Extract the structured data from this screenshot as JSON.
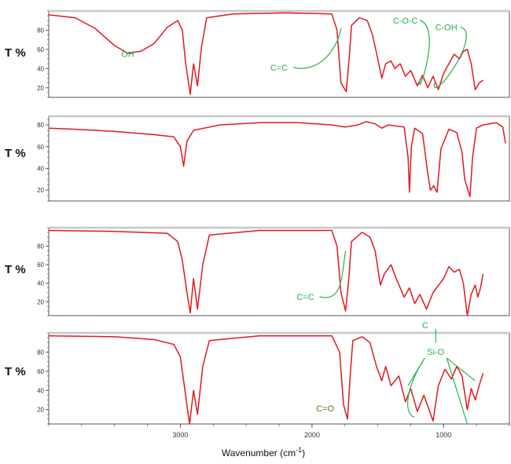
{
  "chart_data": {
    "type": "line",
    "x_axis": {
      "label": "Wavenumber (cm-1)",
      "label_main": "Wavenumber (cm",
      "label_sup": "-1",
      "label_close": ")",
      "range": [
        4000,
        500
      ],
      "ticks": [
        3000,
        2000,
        1000
      ],
      "tick_labels": [
        "3000",
        "2000",
        "1000"
      ]
    },
    "colors": {
      "spectrum": "#e0191f",
      "annotation": "#27b04a",
      "annotation_co": "#6b6b18",
      "grid": "#c8c8c8",
      "frame": "#555555"
    },
    "panels": [
      {
        "ylabel": "T %",
        "y_ticks": [
          20,
          40,
          60,
          80
        ],
        "tick_labels": [
          "20",
          "40",
          "60",
          "80"
        ],
        "ylim": [
          10,
          100
        ],
        "series": [
          {
            "x": 4000,
            "y": 96
          },
          {
            "x": 3800,
            "y": 93
          },
          {
            "x": 3650,
            "y": 82
          },
          {
            "x": 3500,
            "y": 64
          },
          {
            "x": 3400,
            "y": 56
          },
          {
            "x": 3300,
            "y": 58
          },
          {
            "x": 3200,
            "y": 66
          },
          {
            "x": 3100,
            "y": 83
          },
          {
            "x": 3020,
            "y": 90
          },
          {
            "x": 2985,
            "y": 80
          },
          {
            "x": 2960,
            "y": 46
          },
          {
            "x": 2925,
            "y": 13
          },
          {
            "x": 2900,
            "y": 45
          },
          {
            "x": 2870,
            "y": 22
          },
          {
            "x": 2840,
            "y": 62
          },
          {
            "x": 2800,
            "y": 93
          },
          {
            "x": 2600,
            "y": 97
          },
          {
            "x": 2200,
            "y": 98
          },
          {
            "x": 1850,
            "y": 97
          },
          {
            "x": 1810,
            "y": 80
          },
          {
            "x": 1780,
            "y": 25
          },
          {
            "x": 1740,
            "y": 16
          },
          {
            "x": 1715,
            "y": 55
          },
          {
            "x": 1700,
            "y": 85
          },
          {
            "x": 1640,
            "y": 93
          },
          {
            "x": 1580,
            "y": 90
          },
          {
            "x": 1540,
            "y": 75
          },
          {
            "x": 1500,
            "y": 50
          },
          {
            "x": 1470,
            "y": 30
          },
          {
            "x": 1440,
            "y": 45
          },
          {
            "x": 1400,
            "y": 48
          },
          {
            "x": 1370,
            "y": 40
          },
          {
            "x": 1330,
            "y": 45
          },
          {
            "x": 1290,
            "y": 32
          },
          {
            "x": 1250,
            "y": 38
          },
          {
            "x": 1200,
            "y": 22
          },
          {
            "x": 1160,
            "y": 33
          },
          {
            "x": 1120,
            "y": 20
          },
          {
            "x": 1080,
            "y": 32
          },
          {
            "x": 1040,
            "y": 18
          },
          {
            "x": 1000,
            "y": 35
          },
          {
            "x": 960,
            "y": 45
          },
          {
            "x": 920,
            "y": 55
          },
          {
            "x": 880,
            "y": 50
          },
          {
            "x": 850,
            "y": 58
          },
          {
            "x": 820,
            "y": 60
          },
          {
            "x": 790,
            "y": 45
          },
          {
            "x": 760,
            "y": 18
          },
          {
            "x": 730,
            "y": 25
          },
          {
            "x": 700,
            "y": 28
          }
        ],
        "annotations": [
          {
            "text": "OH",
            "x": 3400,
            "y": 52
          },
          {
            "text": "C=C",
            "x": 2250,
            "y": 38,
            "curve_to": [
              1780,
              82
            ]
          },
          {
            "text": "C-O-C",
            "x": 1290,
            "y": 87,
            "curve_to": [
              1180,
              28
            ]
          },
          {
            "text": "C-OH",
            "x": 980,
            "y": 80,
            "curve_to": [
              1070,
              25
            ]
          }
        ]
      },
      {
        "ylabel": "T %",
        "y_ticks": [
          20,
          40,
          60,
          80
        ],
        "tick_labels": [
          "20",
          "40",
          "60",
          "80"
        ],
        "ylim": [
          10,
          88
        ],
        "series": [
          {
            "x": 4000,
            "y": 77
          },
          {
            "x": 3800,
            "y": 76
          },
          {
            "x": 3500,
            "y": 74
          },
          {
            "x": 3200,
            "y": 71
          },
          {
            "x": 3050,
            "y": 69
          },
          {
            "x": 3000,
            "y": 60
          },
          {
            "x": 2975,
            "y": 42
          },
          {
            "x": 2950,
            "y": 65
          },
          {
            "x": 2900,
            "y": 75
          },
          {
            "x": 2700,
            "y": 80
          },
          {
            "x": 2400,
            "y": 82
          },
          {
            "x": 2100,
            "y": 82
          },
          {
            "x": 1850,
            "y": 80
          },
          {
            "x": 1750,
            "y": 78
          },
          {
            "x": 1650,
            "y": 80
          },
          {
            "x": 1590,
            "y": 83
          },
          {
            "x": 1520,
            "y": 81
          },
          {
            "x": 1470,
            "y": 77
          },
          {
            "x": 1420,
            "y": 80
          },
          {
            "x": 1300,
            "y": 78
          },
          {
            "x": 1270,
            "y": 50
          },
          {
            "x": 1260,
            "y": 18
          },
          {
            "x": 1245,
            "y": 60
          },
          {
            "x": 1220,
            "y": 77
          },
          {
            "x": 1160,
            "y": 72
          },
          {
            "x": 1120,
            "y": 35
          },
          {
            "x": 1100,
            "y": 20
          },
          {
            "x": 1075,
            "y": 24
          },
          {
            "x": 1050,
            "y": 18
          },
          {
            "x": 1020,
            "y": 58
          },
          {
            "x": 960,
            "y": 76
          },
          {
            "x": 900,
            "y": 73
          },
          {
            "x": 860,
            "y": 55
          },
          {
            "x": 840,
            "y": 30
          },
          {
            "x": 800,
            "y": 14
          },
          {
            "x": 780,
            "y": 50
          },
          {
            "x": 750,
            "y": 77
          },
          {
            "x": 700,
            "y": 80
          },
          {
            "x": 600,
            "y": 82
          },
          {
            "x": 550,
            "y": 78
          },
          {
            "x": 530,
            "y": 63
          }
        ],
        "annotations": []
      },
      {
        "ylabel": "T %",
        "y_ticks": [
          20,
          40,
          60,
          80
        ],
        "tick_labels": [
          "20",
          "40",
          "60",
          "80"
        ],
        "ylim": [
          5,
          100
        ],
        "series": [
          {
            "x": 4000,
            "y": 97
          },
          {
            "x": 3500,
            "y": 96
          },
          {
            "x": 3100,
            "y": 94
          },
          {
            "x": 3020,
            "y": 85
          },
          {
            "x": 2985,
            "y": 65
          },
          {
            "x": 2950,
            "y": 30
          },
          {
            "x": 2925,
            "y": 8
          },
          {
            "x": 2900,
            "y": 45
          },
          {
            "x": 2870,
            "y": 12
          },
          {
            "x": 2830,
            "y": 60
          },
          {
            "x": 2780,
            "y": 92
          },
          {
            "x": 2400,
            "y": 97
          },
          {
            "x": 1850,
            "y": 97
          },
          {
            "x": 1810,
            "y": 80
          },
          {
            "x": 1780,
            "y": 30
          },
          {
            "x": 1745,
            "y": 10
          },
          {
            "x": 1720,
            "y": 45
          },
          {
            "x": 1700,
            "y": 85
          },
          {
            "x": 1620,
            "y": 95
          },
          {
            "x": 1560,
            "y": 90
          },
          {
            "x": 1520,
            "y": 75
          },
          {
            "x": 1480,
            "y": 38
          },
          {
            "x": 1450,
            "y": 50
          },
          {
            "x": 1400,
            "y": 60
          },
          {
            "x": 1360,
            "y": 45
          },
          {
            "x": 1300,
            "y": 25
          },
          {
            "x": 1260,
            "y": 35
          },
          {
            "x": 1220,
            "y": 18
          },
          {
            "x": 1180,
            "y": 28
          },
          {
            "x": 1130,
            "y": 12
          },
          {
            "x": 1080,
            "y": 30
          },
          {
            "x": 1000,
            "y": 45
          },
          {
            "x": 960,
            "y": 58
          },
          {
            "x": 920,
            "y": 52
          },
          {
            "x": 880,
            "y": 55
          },
          {
            "x": 850,
            "y": 40
          },
          {
            "x": 820,
            "y": 5
          },
          {
            "x": 790,
            "y": 28
          },
          {
            "x": 760,
            "y": 38
          },
          {
            "x": 740,
            "y": 25
          },
          {
            "x": 720,
            "y": 35
          },
          {
            "x": 700,
            "y": 50
          }
        ],
        "annotations": [
          {
            "text": "C=C",
            "x": 2050,
            "y": 22,
            "curve_to": [
              1745,
              75
            ]
          }
        ]
      },
      {
        "ylabel": "T %",
        "y_ticks": [
          20,
          40,
          60,
          80
        ],
        "tick_labels": [
          "20",
          "40",
          "60",
          "80"
        ],
        "ylim": [
          5,
          100
        ],
        "series": [
          {
            "x": 4000,
            "y": 97
          },
          {
            "x": 3500,
            "y": 96
          },
          {
            "x": 3200,
            "y": 93
          },
          {
            "x": 3050,
            "y": 88
          },
          {
            "x": 3000,
            "y": 75
          },
          {
            "x": 2960,
            "y": 35
          },
          {
            "x": 2930,
            "y": 5
          },
          {
            "x": 2900,
            "y": 40
          },
          {
            "x": 2870,
            "y": 15
          },
          {
            "x": 2830,
            "y": 65
          },
          {
            "x": 2780,
            "y": 92
          },
          {
            "x": 2400,
            "y": 97
          },
          {
            "x": 1850,
            "y": 97
          },
          {
            "x": 1790,
            "y": 80
          },
          {
            "x": 1760,
            "y": 25
          },
          {
            "x": 1730,
            "y": 10
          },
          {
            "x": 1710,
            "y": 55
          },
          {
            "x": 1690,
            "y": 92
          },
          {
            "x": 1620,
            "y": 96
          },
          {
            "x": 1560,
            "y": 90
          },
          {
            "x": 1510,
            "y": 65
          },
          {
            "x": 1470,
            "y": 50
          },
          {
            "x": 1440,
            "y": 65
          },
          {
            "x": 1400,
            "y": 45
          },
          {
            "x": 1340,
            "y": 55
          },
          {
            "x": 1290,
            "y": 28
          },
          {
            "x": 1250,
            "y": 42
          },
          {
            "x": 1200,
            "y": 18
          },
          {
            "x": 1150,
            "y": 35
          },
          {
            "x": 1080,
            "y": 8
          },
          {
            "x": 1040,
            "y": 45
          },
          {
            "x": 990,
            "y": 62
          },
          {
            "x": 940,
            "y": 52
          },
          {
            "x": 900,
            "y": 65
          },
          {
            "x": 860,
            "y": 55
          },
          {
            "x": 820,
            "y": 20
          },
          {
            "x": 790,
            "y": 42
          },
          {
            "x": 760,
            "y": 30
          },
          {
            "x": 730,
            "y": 45
          },
          {
            "x": 700,
            "y": 58
          }
        ],
        "annotations": [
          {
            "text": "C=O",
            "x": 1900,
            "y": 18
          },
          {
            "text": "C",
            "x": 1140,
            "y": 105
          },
          {
            "text": "Si-O",
            "x": 1060,
            "y": 77
          }
        ]
      }
    ]
  }
}
